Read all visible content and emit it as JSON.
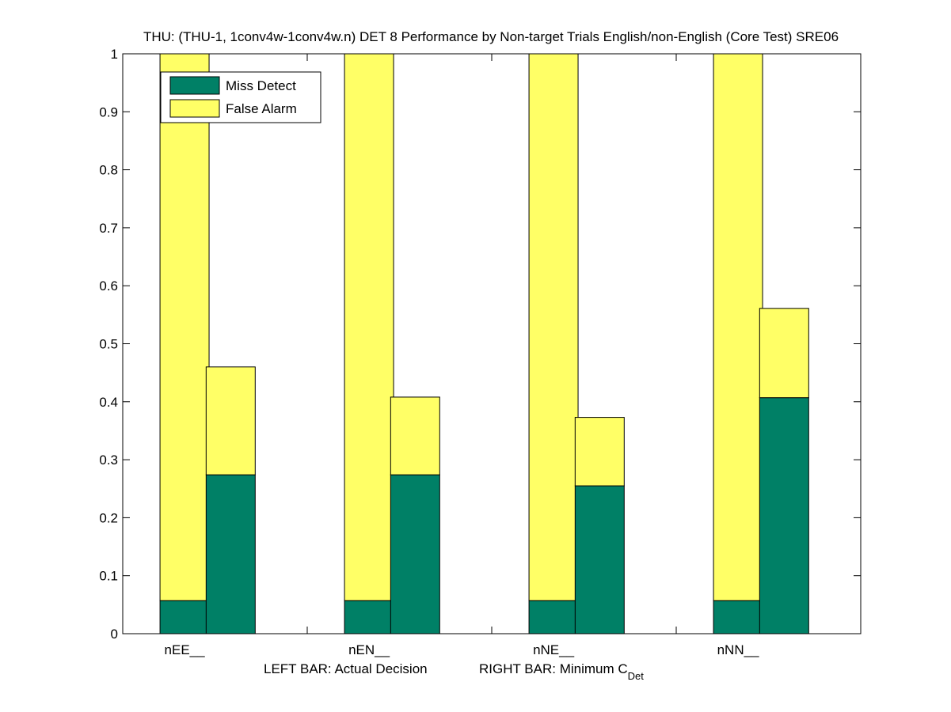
{
  "chart_data": {
    "type": "bar",
    "stacked": true,
    "title": "THU: (THU-1, 1conv4w-1conv4w.n) DET 8 Performance by Non-target Trials English/non-English (Core Test) SRE06",
    "xlabel_parts": {
      "left": "LEFT BAR: Actual Decision",
      "right": "RIGHT BAR: Minimum C",
      "right_subscript": "Det"
    },
    "ylabel": "",
    "ylim": [
      0,
      1
    ],
    "yticks": [
      "0",
      "0.1",
      "0.2",
      "0.3",
      "0.4",
      "0.5",
      "0.6",
      "0.7",
      "0.8",
      "0.9",
      "1"
    ],
    "categories": [
      "nEE__",
      "nEN__",
      "nNE__",
      "nNN__"
    ],
    "bars_per_category": [
      "Actual Decision",
      "Minimum C_Det"
    ],
    "series": [
      {
        "name": "Miss Detect",
        "color": "#008066",
        "actual": [
          0.057,
          0.057,
          0.057,
          0.057
        ],
        "minimum": [
          0.274,
          0.274,
          0.255,
          0.407
        ]
      },
      {
        "name": "False Alarm",
        "color": "#ffff66",
        "actual": [
          0.943,
          0.943,
          0.943,
          0.943
        ],
        "minimum": [
          0.186,
          0.134,
          0.118,
          0.154
        ]
      }
    ],
    "legend_position": "top-left",
    "grid": false
  }
}
